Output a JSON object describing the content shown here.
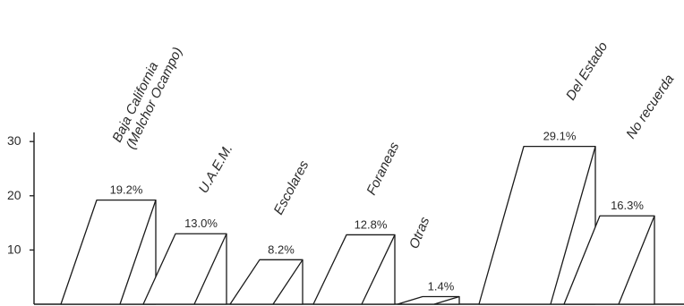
{
  "chart_data": {
    "type": "bar",
    "style": "3d-parallelogram-outline",
    "categories": [
      "Baja California\n(Melchor Ocampo)",
      "U.A.E.M.",
      "Escolares",
      "Foraneas",
      "Otras",
      "Del Estado",
      "No recuerda"
    ],
    "values": [
      19.2,
      13.0,
      8.2,
      12.8,
      1.4,
      29.1,
      16.3
    ],
    "value_labels": [
      "19.2%",
      "13.0%",
      "8.2%",
      "12.8%",
      "1.4%",
      "29.1%",
      "16.3%"
    ],
    "y_ticks": [
      10,
      20,
      30
    ],
    "y_tick_labels": [
      "10",
      "20",
      "30"
    ],
    "ylim": [
      0,
      33
    ],
    "grid": false,
    "colors": {
      "stroke": "#1a1a1a",
      "fill": "#ffffff",
      "text": "#2a2a2a"
    }
  }
}
